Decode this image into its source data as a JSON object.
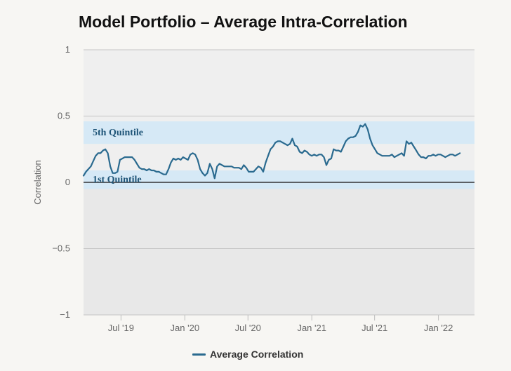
{
  "title": "Model Portfolio – Average Intra-Correlation",
  "colors": {
    "series": "#2a6a8f",
    "band": "#d6e9f6",
    "band_label": "#1f5578",
    "plot_bg_upper": "#efefef",
    "plot_bg_lower": "#e8e8e8",
    "zero_line": "#333333",
    "grid": "#c4c4c4",
    "axis_text": "#666666"
  },
  "chart_data": {
    "type": "line",
    "title": "Model Portfolio – Average Intra-Correlation",
    "ylabel": "Correlation",
    "xlabel": "",
    "ylim": [
      -1,
      1
    ],
    "xlim": [
      "2019-03-15",
      "2022-04-15"
    ],
    "y_ticks": [
      {
        "value": 1,
        "label": "1"
      },
      {
        "value": 0.5,
        "label": "0.5"
      },
      {
        "value": 0,
        "label": "0"
      },
      {
        "value": -0.5,
        "label": "−0.5"
      },
      {
        "value": -1,
        "label": "−1"
      }
    ],
    "x_ticks": [
      {
        "date": "2019-07-01",
        "label": "Jul '19"
      },
      {
        "date": "2020-01-01",
        "label": "Jan '20"
      },
      {
        "date": "2020-07-01",
        "label": "Jul '20"
      },
      {
        "date": "2021-01-01",
        "label": "Jan '21"
      },
      {
        "date": "2021-07-01",
        "label": "Jul '21"
      },
      {
        "date": "2022-01-01",
        "label": "Jan '22"
      }
    ],
    "bands": [
      {
        "label": "5th Quintile",
        "from": 0.29,
        "to": 0.46
      },
      {
        "label": "1st Quintile",
        "from": -0.05,
        "to": 0.09
      }
    ],
    "grid": true,
    "legend_position": "bottom-center",
    "series": [
      {
        "name": "Average Correlation",
        "points": [
          [
            "2019-03-15",
            0.05
          ],
          [
            "2019-03-22",
            0.08
          ],
          [
            "2019-03-29",
            0.1
          ],
          [
            "2019-04-05",
            0.12
          ],
          [
            "2019-04-12",
            0.16
          ],
          [
            "2019-04-19",
            0.2
          ],
          [
            "2019-04-26",
            0.22
          ],
          [
            "2019-05-03",
            0.22
          ],
          [
            "2019-05-10",
            0.24
          ],
          [
            "2019-05-17",
            0.25
          ],
          [
            "2019-05-24",
            0.22
          ],
          [
            "2019-05-31",
            0.12
          ],
          [
            "2019-06-07",
            0.07
          ],
          [
            "2019-06-14",
            0.07
          ],
          [
            "2019-06-21",
            0.08
          ],
          [
            "2019-06-28",
            0.17
          ],
          [
            "2019-07-05",
            0.18
          ],
          [
            "2019-07-12",
            0.19
          ],
          [
            "2019-07-19",
            0.19
          ],
          [
            "2019-07-26",
            0.19
          ],
          [
            "2019-08-02",
            0.19
          ],
          [
            "2019-08-09",
            0.17
          ],
          [
            "2019-08-16",
            0.14
          ],
          [
            "2019-08-23",
            0.11
          ],
          [
            "2019-08-30",
            0.1
          ],
          [
            "2019-09-06",
            0.1
          ],
          [
            "2019-09-13",
            0.09
          ],
          [
            "2019-09-20",
            0.1
          ],
          [
            "2019-09-27",
            0.09
          ],
          [
            "2019-10-04",
            0.09
          ],
          [
            "2019-10-11",
            0.08
          ],
          [
            "2019-10-18",
            0.08
          ],
          [
            "2019-10-25",
            0.07
          ],
          [
            "2019-11-01",
            0.06
          ],
          [
            "2019-11-08",
            0.06
          ],
          [
            "2019-11-15",
            0.1
          ],
          [
            "2019-11-22",
            0.15
          ],
          [
            "2019-11-29",
            0.18
          ],
          [
            "2019-12-06",
            0.17
          ],
          [
            "2019-12-13",
            0.18
          ],
          [
            "2019-12-20",
            0.17
          ],
          [
            "2019-12-27",
            0.19
          ],
          [
            "2020-01-03",
            0.18
          ],
          [
            "2020-01-10",
            0.17
          ],
          [
            "2020-01-17",
            0.21
          ],
          [
            "2020-01-24",
            0.22
          ],
          [
            "2020-01-31",
            0.21
          ],
          [
            "2020-02-07",
            0.17
          ],
          [
            "2020-02-14",
            0.1
          ],
          [
            "2020-02-21",
            0.07
          ],
          [
            "2020-02-28",
            0.05
          ],
          [
            "2020-03-06",
            0.07
          ],
          [
            "2020-03-13",
            0.14
          ],
          [
            "2020-03-20",
            0.1
          ],
          [
            "2020-03-27",
            0.03
          ],
          [
            "2020-04-03",
            0.12
          ],
          [
            "2020-04-10",
            0.14
          ],
          [
            "2020-04-17",
            0.13
          ],
          [
            "2020-04-24",
            0.12
          ],
          [
            "2020-05-01",
            0.12
          ],
          [
            "2020-05-08",
            0.12
          ],
          [
            "2020-05-15",
            0.12
          ],
          [
            "2020-05-22",
            0.11
          ],
          [
            "2020-05-29",
            0.11
          ],
          [
            "2020-06-05",
            0.11
          ],
          [
            "2020-06-12",
            0.1
          ],
          [
            "2020-06-19",
            0.13
          ],
          [
            "2020-06-26",
            0.11
          ],
          [
            "2020-07-03",
            0.08
          ],
          [
            "2020-07-10",
            0.08
          ],
          [
            "2020-07-17",
            0.08
          ],
          [
            "2020-07-24",
            0.1
          ],
          [
            "2020-07-31",
            0.12
          ],
          [
            "2020-08-07",
            0.11
          ],
          [
            "2020-08-14",
            0.08
          ],
          [
            "2020-08-21",
            0.15
          ],
          [
            "2020-08-28",
            0.2
          ],
          [
            "2020-09-04",
            0.25
          ],
          [
            "2020-09-11",
            0.27
          ],
          [
            "2020-09-18",
            0.3
          ],
          [
            "2020-09-25",
            0.31
          ],
          [
            "2020-10-02",
            0.31
          ],
          [
            "2020-10-09",
            0.3
          ],
          [
            "2020-10-16",
            0.29
          ],
          [
            "2020-10-23",
            0.28
          ],
          [
            "2020-10-30",
            0.29
          ],
          [
            "2020-11-06",
            0.33
          ],
          [
            "2020-11-13",
            0.28
          ],
          [
            "2020-11-20",
            0.27
          ],
          [
            "2020-11-27",
            0.23
          ],
          [
            "2020-12-04",
            0.22
          ],
          [
            "2020-12-11",
            0.24
          ],
          [
            "2020-12-18",
            0.23
          ],
          [
            "2020-12-25",
            0.21
          ],
          [
            "2021-01-01",
            0.2
          ],
          [
            "2021-01-08",
            0.21
          ],
          [
            "2021-01-15",
            0.2
          ],
          [
            "2021-01-22",
            0.21
          ],
          [
            "2021-01-29",
            0.21
          ],
          [
            "2021-02-05",
            0.19
          ],
          [
            "2021-02-12",
            0.13
          ],
          [
            "2021-02-19",
            0.17
          ],
          [
            "2021-02-26",
            0.18
          ],
          [
            "2021-03-05",
            0.25
          ],
          [
            "2021-03-12",
            0.24
          ],
          [
            "2021-03-19",
            0.24
          ],
          [
            "2021-03-26",
            0.23
          ],
          [
            "2021-04-02",
            0.27
          ],
          [
            "2021-04-09",
            0.31
          ],
          [
            "2021-04-16",
            0.33
          ],
          [
            "2021-04-23",
            0.34
          ],
          [
            "2021-04-30",
            0.34
          ],
          [
            "2021-05-07",
            0.35
          ],
          [
            "2021-05-14",
            0.38
          ],
          [
            "2021-05-21",
            0.43
          ],
          [
            "2021-05-28",
            0.42
          ],
          [
            "2021-06-04",
            0.44
          ],
          [
            "2021-06-11",
            0.4
          ],
          [
            "2021-06-18",
            0.33
          ],
          [
            "2021-06-25",
            0.28
          ],
          [
            "2021-07-02",
            0.25
          ],
          [
            "2021-07-09",
            0.22
          ],
          [
            "2021-07-16",
            0.21
          ],
          [
            "2021-07-23",
            0.2
          ],
          [
            "2021-07-30",
            0.2
          ],
          [
            "2021-08-06",
            0.2
          ],
          [
            "2021-08-13",
            0.2
          ],
          [
            "2021-08-20",
            0.21
          ],
          [
            "2021-08-27",
            0.19
          ],
          [
            "2021-09-03",
            0.2
          ],
          [
            "2021-09-10",
            0.21
          ],
          [
            "2021-09-17",
            0.22
          ],
          [
            "2021-09-24",
            0.2
          ],
          [
            "2021-10-01",
            0.31
          ],
          [
            "2021-10-08",
            0.29
          ],
          [
            "2021-10-15",
            0.3
          ],
          [
            "2021-10-22",
            0.27
          ],
          [
            "2021-10-29",
            0.24
          ],
          [
            "2021-11-05",
            0.21
          ],
          [
            "2021-11-12",
            0.19
          ],
          [
            "2021-11-19",
            0.19
          ],
          [
            "2021-11-26",
            0.18
          ],
          [
            "2021-12-03",
            0.2
          ],
          [
            "2021-12-10",
            0.2
          ],
          [
            "2021-12-17",
            0.21
          ],
          [
            "2021-12-24",
            0.2
          ],
          [
            "2021-12-31",
            0.21
          ],
          [
            "2022-01-07",
            0.21
          ],
          [
            "2022-01-14",
            0.2
          ],
          [
            "2022-01-21",
            0.19
          ],
          [
            "2022-01-28",
            0.2
          ],
          [
            "2022-02-04",
            0.21
          ],
          [
            "2022-02-11",
            0.21
          ],
          [
            "2022-02-18",
            0.2
          ],
          [
            "2022-02-25",
            0.21
          ],
          [
            "2022-03-04",
            0.22
          ]
        ]
      }
    ]
  }
}
